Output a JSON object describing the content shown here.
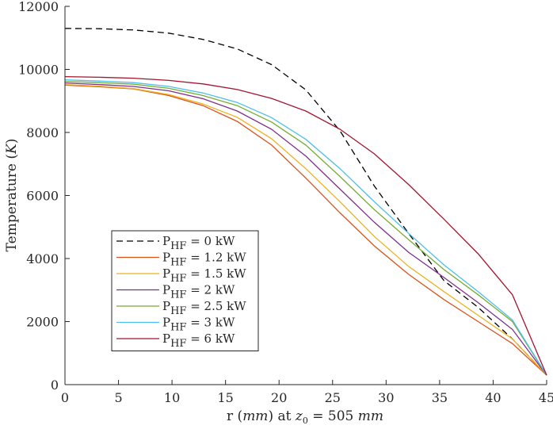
{
  "chart_data": {
    "type": "line",
    "title": "",
    "xlabel": "r (mm) at z0 = 505 mm",
    "xlabel_parts": {
      "r": "r (",
      "mm1": "mm",
      "at": ") at ",
      "z": "z",
      "sub0": "0",
      "eq": " = 505 ",
      "mm2": "mm"
    },
    "ylabel": "Temperature (K)",
    "ylabel_parts": {
      "t": "Temperature (",
      "k": "K",
      "close": ")"
    },
    "xlim": [
      0,
      45
    ],
    "ylim": [
      0,
      12000
    ],
    "xticks": [
      "0",
      "5",
      "10",
      "15",
      "20",
      "25",
      "30",
      "35",
      "40",
      "45"
    ],
    "yticks": [
      "0",
      "2000",
      "4000",
      "6000",
      "8000",
      "10000",
      "12000"
    ],
    "grid": false,
    "legend_placement": "lower-left",
    "x": [
      0,
      3.2,
      6.4,
      9.7,
      12.9,
      16.1,
      19.3,
      22.5,
      25.7,
      28.9,
      32.1,
      35.4,
      38.6,
      41.8,
      45
    ],
    "series": [
      {
        "name": "P_HF = 0 kW",
        "label_main": "P",
        "label_sub": "HF",
        "label_rest": " = 0 kW",
        "color": "#000000",
        "dashed": true,
        "values": [
          11300,
          11290,
          11250,
          11150,
          10950,
          10650,
          10150,
          9350,
          8050,
          6300,
          4800,
          3300,
          2450,
          1450,
          300
        ]
      },
      {
        "name": "P_HF = 1.2 kW",
        "label_main": "P",
        "label_sub": "HF",
        "label_rest": " = 1.2 kW",
        "color": "#D95319",
        "dashed": false,
        "values": [
          9500,
          9450,
          9380,
          9170,
          8850,
          8350,
          7600,
          6550,
          5450,
          4400,
          3500,
          2700,
          2000,
          1300,
          300
        ]
      },
      {
        "name": "P_HF = 1.5 kW",
        "label_main": "P",
        "label_sub": "HF",
        "label_rest": " = 1.5 kW",
        "color": "#EDB120",
        "dashed": false,
        "values": [
          9520,
          9470,
          9390,
          9200,
          8900,
          8480,
          7800,
          6850,
          5800,
          4700,
          3750,
          2950,
          2200,
          1450,
          300
        ]
      },
      {
        "name": "P_HF = 2 kW",
        "label_main": "P",
        "label_sub": "HF",
        "label_rest": " = 2 kW",
        "color": "#7E2F8E",
        "dashed": false,
        "values": [
          9570,
          9520,
          9460,
          9320,
          9070,
          8680,
          8100,
          7250,
          6200,
          5150,
          4200,
          3400,
          2600,
          1750,
          300
        ]
      },
      {
        "name": "P_HF = 2.5 kW",
        "label_main": "P",
        "label_sub": "HF",
        "label_rest": " = 2.5 kW",
        "color": "#77AC30",
        "dashed": false,
        "values": [
          9620,
          9580,
          9530,
          9400,
          9170,
          8850,
          8330,
          7600,
          6600,
          5550,
          4600,
          3650,
          2850,
          2000,
          300
        ]
      },
      {
        "name": "P_HF = 3 kW",
        "label_main": "P",
        "label_sub": "HF",
        "label_rest": " = 3 kW",
        "color": "#4DBEEE",
        "dashed": false,
        "values": [
          9670,
          9630,
          9580,
          9460,
          9250,
          8950,
          8470,
          7780,
          6850,
          5800,
          4800,
          3800,
          2950,
          2050,
          300
        ]
      },
      {
        "name": "P_HF = 6 kW",
        "label_main": "P",
        "label_sub": "HF",
        "label_rest": " = 6 kW",
        "color": "#A2142F",
        "dashed": false,
        "values": [
          9770,
          9750,
          9720,
          9650,
          9540,
          9360,
          9080,
          8680,
          8100,
          7320,
          6350,
          5250,
          4150,
          2850,
          300
        ]
      }
    ]
  }
}
